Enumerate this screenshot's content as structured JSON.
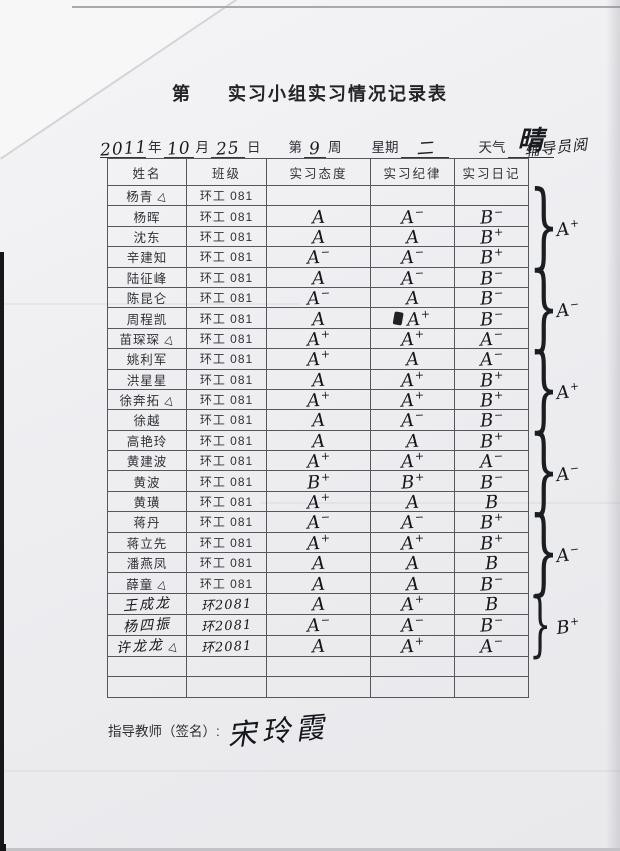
{
  "page": {
    "title_prefix": "第",
    "title_main": "实习小组实习情况记录表",
    "margin_note": "辅导员阅",
    "teacher_label": "指导教师（签名）:",
    "teacher_signature": "宋玲霞"
  },
  "date_line": {
    "year_value": "2011",
    "year_label": "年",
    "month_value": "10",
    "month_label": "月",
    "day_value": "25",
    "day_label": "日",
    "week_prefix": "第",
    "week_value": "9",
    "week_suffix": "周",
    "weekday_label": "星期",
    "weekday_value": "二",
    "weather_label": "天气",
    "weather_value": "晴"
  },
  "table": {
    "headers": [
      "姓名",
      "班级",
      "实习态度",
      "实习纪律",
      "实习日记"
    ],
    "rows": [
      {
        "name": "杨青",
        "mark": true,
        "hw": false,
        "cls": "环工 081",
        "grades": [
          "",
          "",
          ""
        ]
      },
      {
        "name": "杨晖",
        "mark": false,
        "hw": false,
        "cls": "环工 081",
        "grades": [
          "A",
          "A-",
          "B-"
        ]
      },
      {
        "name": "沈东",
        "mark": false,
        "hw": false,
        "cls": "环工 081",
        "grades": [
          "A",
          "A",
          "B+"
        ]
      },
      {
        "name": "辛建知",
        "mark": false,
        "hw": false,
        "cls": "环工 081",
        "grades": [
          "A-",
          "A-",
          "B+"
        ]
      },
      {
        "name": "陆征峰",
        "mark": false,
        "hw": false,
        "cls": "环工 081",
        "grades": [
          "A",
          "A-",
          "B-"
        ]
      },
      {
        "name": "陈昆仑",
        "mark": false,
        "hw": false,
        "cls": "环工 081",
        "grades": [
          "A-",
          "A",
          "B-"
        ]
      },
      {
        "name": "周程凯",
        "mark": false,
        "hw": false,
        "cls": "环工 081",
        "grades": [
          "A",
          "A+",
          "B-"
        ],
        "scribble": 1
      },
      {
        "name": "苗琛琛",
        "mark": true,
        "hw": false,
        "cls": "环工 081",
        "grades": [
          "A+",
          "A+",
          "A-"
        ]
      },
      {
        "name": "姚利军",
        "mark": false,
        "hw": false,
        "cls": "环工 081",
        "grades": [
          "A+",
          "A",
          "A-"
        ]
      },
      {
        "name": "洪星星",
        "mark": false,
        "hw": false,
        "cls": "环工 081",
        "grades": [
          "A",
          "A+",
          "B+"
        ]
      },
      {
        "name": "徐奔拓",
        "mark": true,
        "hw": false,
        "cls": "环工 081",
        "grades": [
          "A+",
          "A+",
          "B+"
        ]
      },
      {
        "name": "徐越",
        "mark": false,
        "hw": false,
        "cls": "环工 081",
        "grades": [
          "A",
          "A-",
          "B-"
        ]
      },
      {
        "name": "高艳玲",
        "mark": false,
        "hw": false,
        "cls": "环工 081",
        "grades": [
          "A",
          "A",
          "B+"
        ]
      },
      {
        "name": "黄建波",
        "mark": false,
        "hw": false,
        "cls": "环工 081",
        "grades": [
          "A+",
          "A+",
          "A-"
        ]
      },
      {
        "name": "黄波",
        "mark": false,
        "hw": false,
        "cls": "环工 081",
        "grades": [
          "B+",
          "B+",
          "B-"
        ]
      },
      {
        "name": "黄璜",
        "mark": false,
        "hw": false,
        "cls": "环工 081",
        "grades": [
          "A+",
          "A",
          "B"
        ]
      },
      {
        "name": "蒋丹",
        "mark": false,
        "hw": false,
        "cls": "环工 081",
        "grades": [
          "A-",
          "A-",
          "B+"
        ]
      },
      {
        "name": "蒋立先",
        "mark": false,
        "hw": false,
        "cls": "环工 081",
        "grades": [
          "A+",
          "A+",
          "B+"
        ]
      },
      {
        "name": "潘燕凤",
        "mark": false,
        "hw": false,
        "cls": "环工 081",
        "grades": [
          "A",
          "A",
          "B"
        ]
      },
      {
        "name": "薛童",
        "mark": true,
        "hw": false,
        "cls": "环工 081",
        "grades": [
          "A",
          "A",
          "B-"
        ]
      },
      {
        "name": "王成龙",
        "mark": false,
        "hw": true,
        "cls": "环2081",
        "grades": [
          "A",
          "A+",
          "B"
        ]
      },
      {
        "name": "杨四振",
        "mark": false,
        "hw": true,
        "cls": "环2081",
        "grades": [
          "A-",
          "A-",
          "B-"
        ]
      },
      {
        "name": "许龙龙",
        "mark": true,
        "hw": true,
        "cls": "环2081",
        "grades": [
          "A",
          "A+",
          "A-"
        ]
      },
      {
        "name": "",
        "mark": false,
        "hw": false,
        "cls": "",
        "grades": [
          "",
          "",
          ""
        ]
      },
      {
        "name": "",
        "mark": false,
        "hw": false,
        "cls": "",
        "grades": [
          "",
          "",
          ""
        ]
      }
    ]
  },
  "brace_groups": [
    {
      "start": 1,
      "end": 4,
      "grade": "A+"
    },
    {
      "start": 5,
      "end": 8,
      "grade": "A-"
    },
    {
      "start": 9,
      "end": 12,
      "grade": "A+"
    },
    {
      "start": 13,
      "end": 16,
      "grade": "A-"
    },
    {
      "start": 17,
      "end": 20,
      "grade": "A-"
    },
    {
      "start": 21,
      "end": 23,
      "grade": "B+"
    }
  ],
  "colors": {
    "ink": "#14171c",
    "paper": "#efeff2",
    "border": "#56575c"
  }
}
